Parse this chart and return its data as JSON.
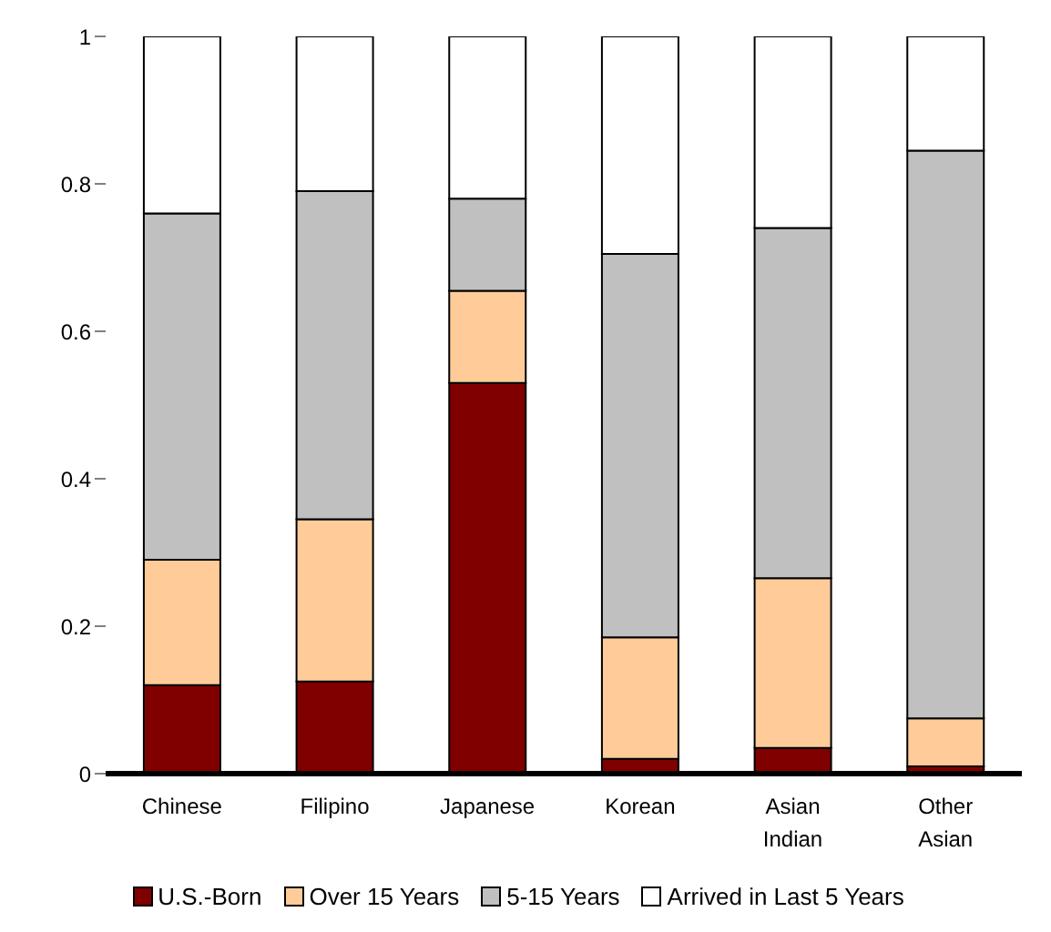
{
  "chart_data": {
    "type": "bar",
    "stacked": true,
    "categories": [
      "Chinese",
      "Filipino",
      "Japanese",
      "Korean",
      "Asian Indian",
      "Other Asian"
    ],
    "series": [
      {
        "name": "U.S.-Born",
        "color": "#800000",
        "values": [
          0.12,
          0.125,
          0.53,
          0.02,
          0.035,
          0.01
        ]
      },
      {
        "name": "Over 15 Years",
        "color": "#ffcc99",
        "values": [
          0.17,
          0.22,
          0.125,
          0.165,
          0.23,
          0.065
        ]
      },
      {
        "name": "5-15 Years",
        "color": "#c0c0c0",
        "values": [
          0.47,
          0.445,
          0.125,
          0.52,
          0.475,
          0.77
        ]
      },
      {
        "name": "Arrived in Last 5 Years",
        "color": "#ffffff",
        "values": [
          0.24,
          0.21,
          0.22,
          0.295,
          0.26,
          0.155
        ]
      }
    ],
    "ylim": [
      0,
      1
    ],
    "yticks": [
      0,
      0.2,
      0.4,
      0.6,
      0.8,
      1
    ],
    "grid": false,
    "legend": "bottom"
  }
}
